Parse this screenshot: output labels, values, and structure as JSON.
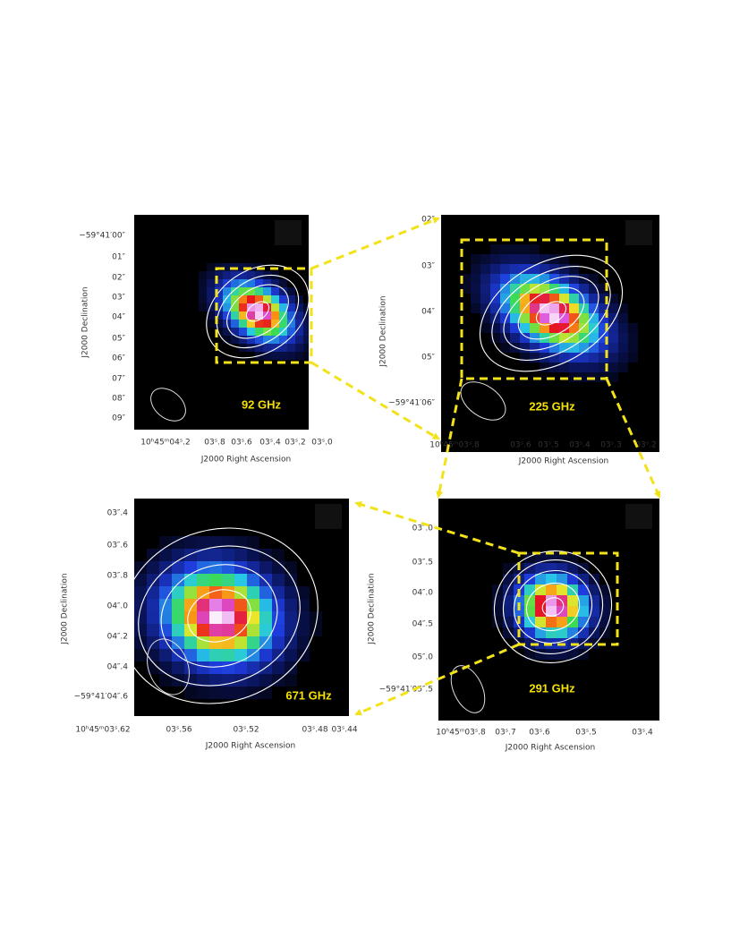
{
  "panels": [
    {
      "label": "92 GHz",
      "x_axis_label": "J2000 Right Ascension",
      "y_axis_label": "J2000 Declination",
      "xticks": [
        "10ʰ45ᵐ04ˢ.2",
        "03ˢ.8",
        "03ˢ.6",
        "03ˢ.4",
        "03ˢ.2",
        "03ˢ.0"
      ],
      "yticks": [
        "−59°41′00″",
        "01″",
        "02″",
        "03″",
        "04″",
        "05″",
        "06″",
        "07″",
        "08″",
        "09″"
      ]
    },
    {
      "label": "225 GHz",
      "x_axis_label": "J2000 Right Ascension",
      "y_axis_label": "J2000 Declination",
      "xticks": [
        "10ʰ45ᵐ03ˢ.8",
        "03ˢ.6",
        "03ˢ.5",
        "03ˢ.4",
        "03ˢ.3",
        "03ˢ.2"
      ],
      "yticks": [
        "02″",
        "03″",
        "04″",
        "05″",
        "−59°41′06″"
      ]
    },
    {
      "label": "671 GHz",
      "x_axis_label": "J2000 Right Ascension",
      "y_axis_label": "J2000 Declination",
      "xticks": [
        "10ʰ45ᵐ03ˢ.62",
        "03ˢ.56",
        "03ˢ.52",
        "03ˢ.48",
        "03ˢ.44"
      ],
      "yticks": [
        "03″.4",
        "03″.6",
        "03″.8",
        "04″.0",
        "04″.2",
        "04″.4",
        "−59°41′04″.6"
      ]
    },
    {
      "label": "291 GHz",
      "x_axis_label": "J2000 Right Ascension",
      "y_axis_label": "J2000 Declination",
      "xticks": [
        "10ʰ45ᵐ03ˢ.8",
        "03ˢ.7",
        "03ˢ.6",
        "03ˢ.5",
        "03ˢ.4"
      ],
      "yticks": [
        "03″.0",
        "03″.5",
        "04″.0",
        "04″.5",
        "05″.0",
        "−59°41′05″.5"
      ]
    }
  ]
}
